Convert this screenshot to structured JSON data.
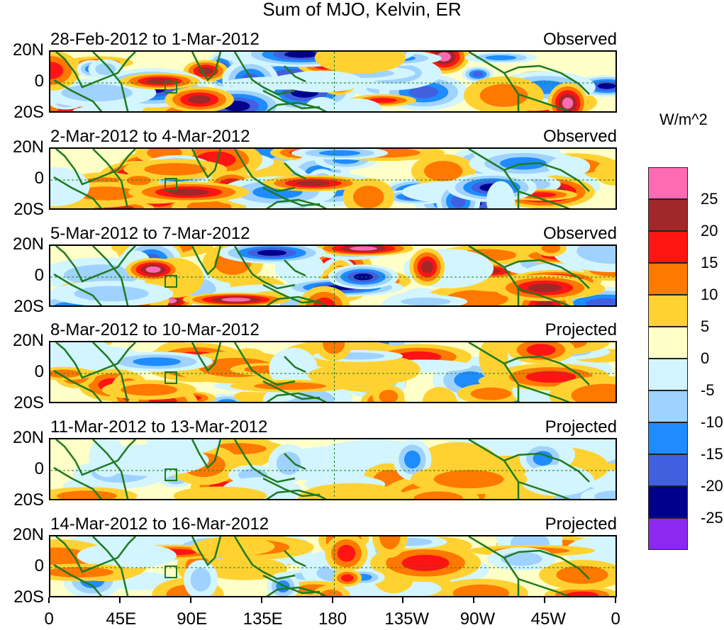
{
  "title": "Sum of MJO, Kelvin, ER",
  "units": "W/m^2",
  "panels": [
    {
      "date_range": "28-Feb-2012 to 1-Mar-2012",
      "status": "Observed"
    },
    {
      "date_range": "2-Mar-2012 to 4-Mar-2012",
      "status": "Observed"
    },
    {
      "date_range": "5-Mar-2012 to 7-Mar-2012",
      "status": "Observed"
    },
    {
      "date_range": "8-Mar-2012 to 10-Mar-2012",
      "status": "Projected"
    },
    {
      "date_range": "11-Mar-2012 to 13-Mar-2012",
      "status": "Projected"
    },
    {
      "date_range": "14-Mar-2012 to 16-Mar-2012",
      "status": "Projected"
    }
  ],
  "lat_labels": [
    "20N",
    "0",
    "20S"
  ],
  "lon_labels": [
    "0",
    "45E",
    "90E",
    "135E",
    "180",
    "135W",
    "90W",
    "45W",
    "0"
  ],
  "colorbar": {
    "labels": [
      "25",
      "20",
      "15",
      "10",
      "5",
      "0",
      "-5",
      "-10",
      "-15",
      "-20",
      "-25"
    ],
    "colors": [
      "#ff6ab4",
      "#a02828",
      "#ff1414",
      "#ff7800",
      "#ffd232",
      "#ffffc8",
      "#d2f5ff",
      "#a0d2ff",
      "#1e8cff",
      "#4060e0",
      "#00008c",
      "#8c28f0"
    ]
  }
}
